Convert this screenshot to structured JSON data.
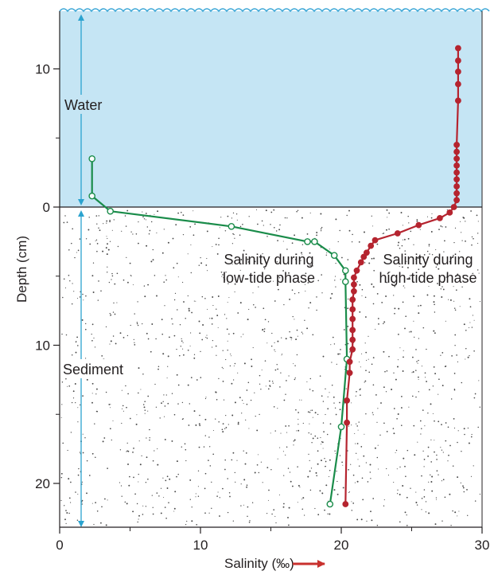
{
  "chart_data": {
    "type": "line",
    "xlabel": "Salinity (‰)",
    "ylabel": "Depth (cm)",
    "xlim": [
      0,
      30
    ],
    "ylim": [
      -14,
      23
    ],
    "x_ticks": [
      0,
      10,
      20,
      30
    ],
    "y_ticks": [
      {
        "value": -10,
        "label": "10"
      },
      {
        "value": 0,
        "label": "0"
      },
      {
        "value": 10,
        "label": "10"
      },
      {
        "value": 20,
        "label": "20"
      }
    ],
    "regions": {
      "water": "Water",
      "sediment": "Sediment"
    },
    "series": [
      {
        "name": "Salinity during low-tide phase",
        "label_lines": [
          "Salinity during",
          "low-tide phase"
        ],
        "color": "#1a8c4a",
        "marker": "open-circle",
        "points": [
          [
            2.3,
            -3.5
          ],
          [
            2.3,
            -0.8
          ],
          [
            3.6,
            0.3
          ],
          [
            12.2,
            1.4
          ],
          [
            17.6,
            2.5
          ],
          [
            18.1,
            2.5
          ],
          [
            19.5,
            3.5
          ],
          [
            20.3,
            4.6
          ],
          [
            20.3,
            5.4
          ],
          [
            20.4,
            11.0
          ],
          [
            20.0,
            15.9
          ],
          [
            19.2,
            21.5
          ]
        ]
      },
      {
        "name": "Salinity during high-tide phase",
        "label_lines": [
          "Salinity during",
          "high-tide phase"
        ],
        "color": "#b5242f",
        "marker": "filled-circle",
        "points": [
          [
            28.3,
            -11.5
          ],
          [
            28.3,
            -10.6
          ],
          [
            28.3,
            -9.8
          ],
          [
            28.3,
            -8.9
          ],
          [
            28.3,
            -7.7
          ],
          [
            28.2,
            -4.5
          ],
          [
            28.2,
            -4.0
          ],
          [
            28.2,
            -3.5
          ],
          [
            28.2,
            -3.0
          ],
          [
            28.2,
            -2.5
          ],
          [
            28.2,
            -2.0
          ],
          [
            28.2,
            -1.5
          ],
          [
            28.2,
            -1.0
          ],
          [
            28.2,
            -0.5
          ],
          [
            28.0,
            0.0
          ],
          [
            27.7,
            0.4
          ],
          [
            27.0,
            0.8
          ],
          [
            25.5,
            1.3
          ],
          [
            24.0,
            1.9
          ],
          [
            22.4,
            2.4
          ],
          [
            22.1,
            2.8
          ],
          [
            21.8,
            3.3
          ],
          [
            21.6,
            3.6
          ],
          [
            21.4,
            4.0
          ],
          [
            21.1,
            4.6
          ],
          [
            20.9,
            5.1
          ],
          [
            20.9,
            5.6
          ],
          [
            20.9,
            6.1
          ],
          [
            20.8,
            6.7
          ],
          [
            20.8,
            7.4
          ],
          [
            20.8,
            8.1
          ],
          [
            20.8,
            8.9
          ],
          [
            20.8,
            9.6
          ],
          [
            20.8,
            10.3
          ],
          [
            20.6,
            11.2
          ],
          [
            20.6,
            12.0
          ],
          [
            20.4,
            14.0
          ],
          [
            20.4,
            15.6
          ],
          [
            20.3,
            21.5
          ]
        ]
      }
    ]
  }
}
